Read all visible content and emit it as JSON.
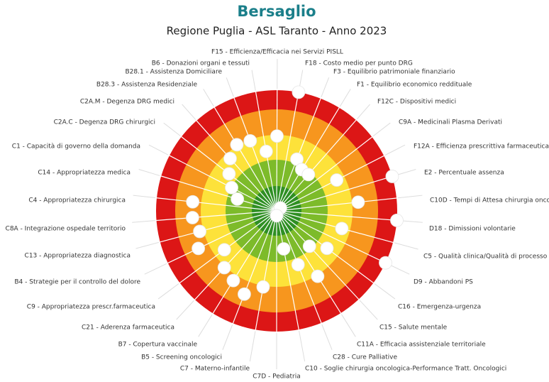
{
  "chart_data": {
    "type": "target",
    "title": "Bersaglio",
    "subtitle": "Regione Puglia  - ASL Taranto - Anno 2023",
    "categories": [
      "F15 - Efficienza/Efficacia nei Servizi PISLL",
      "F18 - Costo medio per punto DRG",
      "F3 - Equilibrio patrimoniale finanziario",
      "F1 - Equilibrio economico reddituale",
      "F12C - Dispositivi medici",
      "C9A - Medicinali Plasma Derivati",
      "F12A - Efficienza prescrittiva farmaceutica",
      "E2 - Percentuale assenza",
      "C10D - Tempi di Attesa chirurgia oncologica",
      "D18 - Dimissioni volontarie",
      "C5 - Qualità clinica/Qualità di processo",
      "D9 - Abbandoni PS",
      "C16 - Emergenza-urgenza",
      "C15 - Salute mentale",
      "C11A - Efficacia assistenziale territoriale",
      "C28 - Cure Palliative",
      "C10 - Soglie chirurgia oncologica-Performance Tratt. Oncologici",
      "C7D - Pediatria",
      "C7 - Materno-infantile",
      "B5 - Screening oncologici",
      "B7 - Copertura vaccinale",
      "C21 - Aderenza farmaceutica",
      "C9 - Appropriatezza prescr.farmaceutica",
      "B4 - Strategie per il controllo del dolore",
      "C13 - Appropriatezza diagnostica",
      "C8A - Integrazione ospedale territorio",
      "C4 - Appropriatezza chirurgica",
      "C14 - Appropriatezza medica",
      "C1 - Capacità di governo della domanda",
      "C2A.C - Degenza DRG chirurgici",
      "C2A.M - Degenza DRG medici",
      "B28.3 - Assistenza Residenziale",
      "B28.1 - Assistenza Domiciliare",
      "B6 - Donazioni organi e tessuti"
    ],
    "values": [
      1.9,
      0,
      2.7,
      3.0,
      3.0,
      4.8,
      2.2,
      0,
      1.6,
      0,
      2.2,
      0,
      2.4,
      3.0,
      1.8,
      2.6,
      3.4,
      4.8,
      1.8,
      1.3,
      1.6,
      1.8,
      2.3,
      1.4,
      1.7,
      1.5,
      1.5,
      3.3,
      2.9,
      2.5,
      2.1,
      1.8,
      1.9,
      2.5
    ],
    "ylim": [
      5,
      0
    ],
    "colors": [
      "#2f8f23",
      "#7dbb2a",
      "#fde23a",
      "#f7961e",
      "#dc1616"
    ]
  }
}
